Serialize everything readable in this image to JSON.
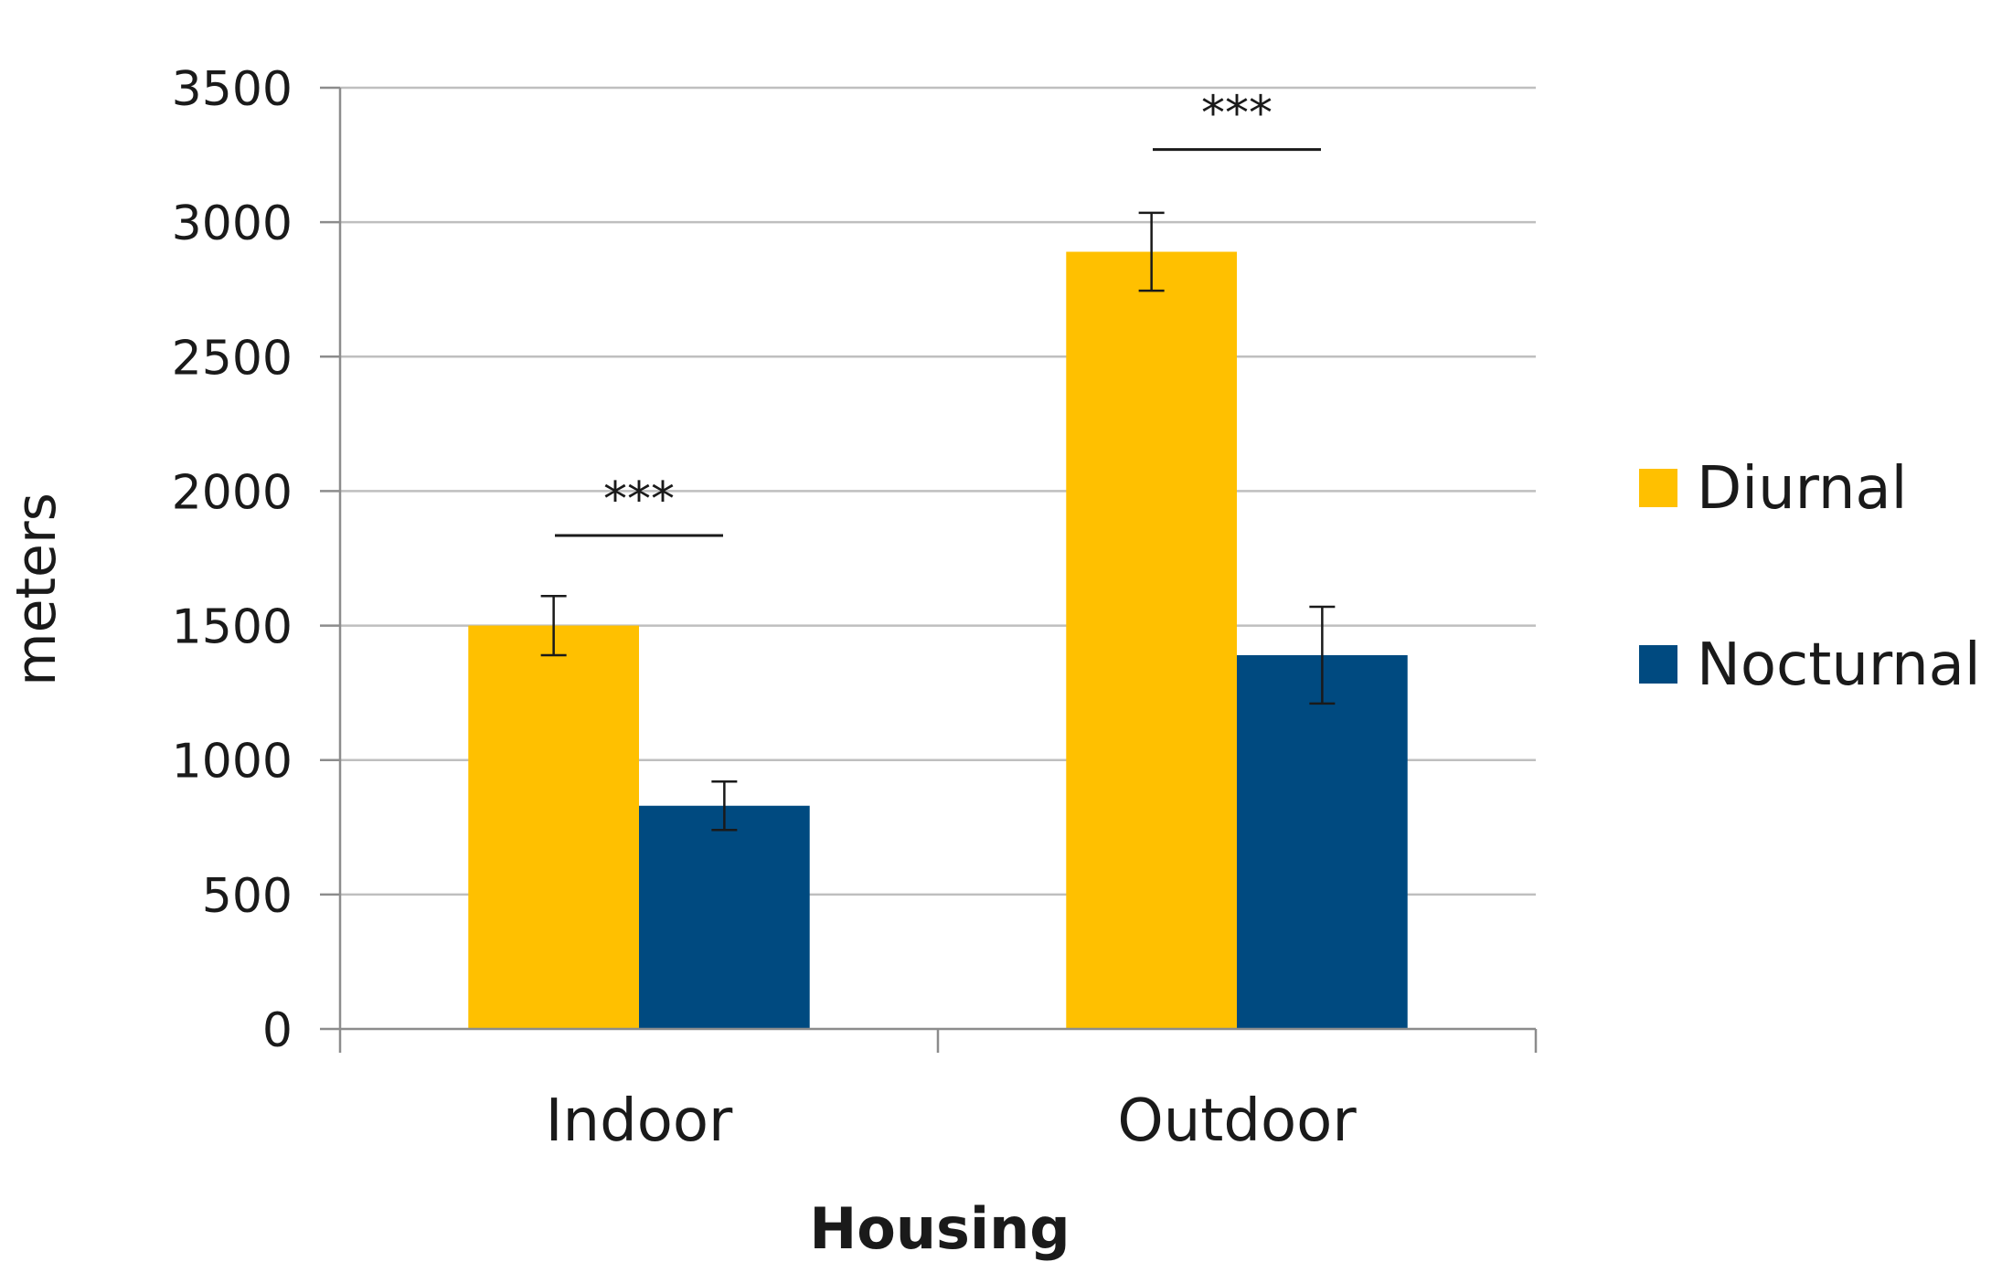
{
  "chart_data": {
    "type": "bar",
    "title": "",
    "xlabel": "Housing",
    "ylabel": "meters",
    "categories": [
      "Indoor",
      "Outdoor"
    ],
    "series": [
      {
        "name": "Diurnal",
        "color": "#FFC000",
        "values": [
          1500,
          2890
        ],
        "errors": [
          110,
          145
        ]
      },
      {
        "name": "Nocturnal",
        "color": "#004A80",
        "values": [
          830,
          1390
        ],
        "errors": [
          90,
          180
        ]
      }
    ],
    "ylim": [
      0,
      3500
    ],
    "yticks": [
      0,
      500,
      1000,
      1500,
      2000,
      2500,
      3000,
      3500
    ],
    "grid": true,
    "legend": {
      "position": "right",
      "entries": [
        "Diurnal",
        "Nocturnal"
      ]
    },
    "annotations": [
      {
        "category": "Indoor",
        "text": "***",
        "level": 1835
      },
      {
        "category": "Outdoor",
        "text": "***",
        "level": 3270
      }
    ]
  }
}
